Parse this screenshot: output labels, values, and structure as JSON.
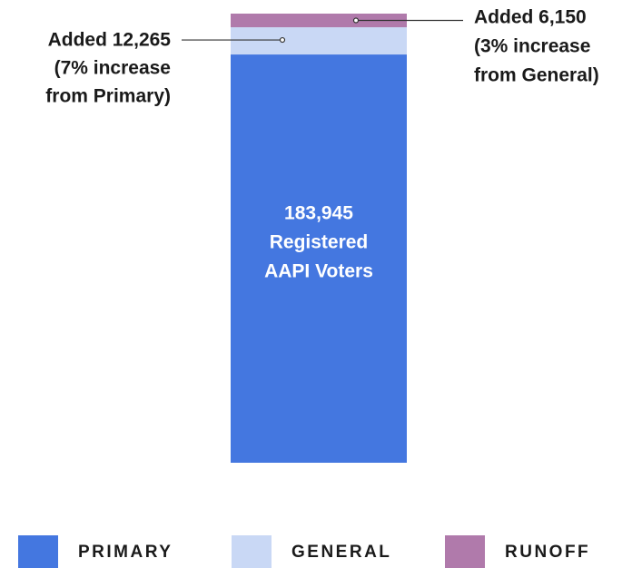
{
  "chart_data": {
    "type": "stacked-bar",
    "series": [
      {
        "name": "PRIMARY",
        "color": "#4477e0",
        "values": [
          183945
        ],
        "value_labels": [
          "183,945"
        ]
      },
      {
        "name": "GENERAL",
        "color": "#c9d8f5",
        "values": [
          12265
        ],
        "value_labels": [
          "Added 12,265"
        ]
      },
      {
        "name": "RUNOFF",
        "color": "#b07aab",
        "values": [
          6150
        ],
        "value_labels": [
          "Added 6,150"
        ]
      }
    ],
    "annotations": [
      [
        "Registered",
        "AAPI Voters"
      ],
      [
        "(7% increase",
        "from Primary)"
      ],
      [
        "(3% increase",
        "from General)"
      ]
    ]
  }
}
